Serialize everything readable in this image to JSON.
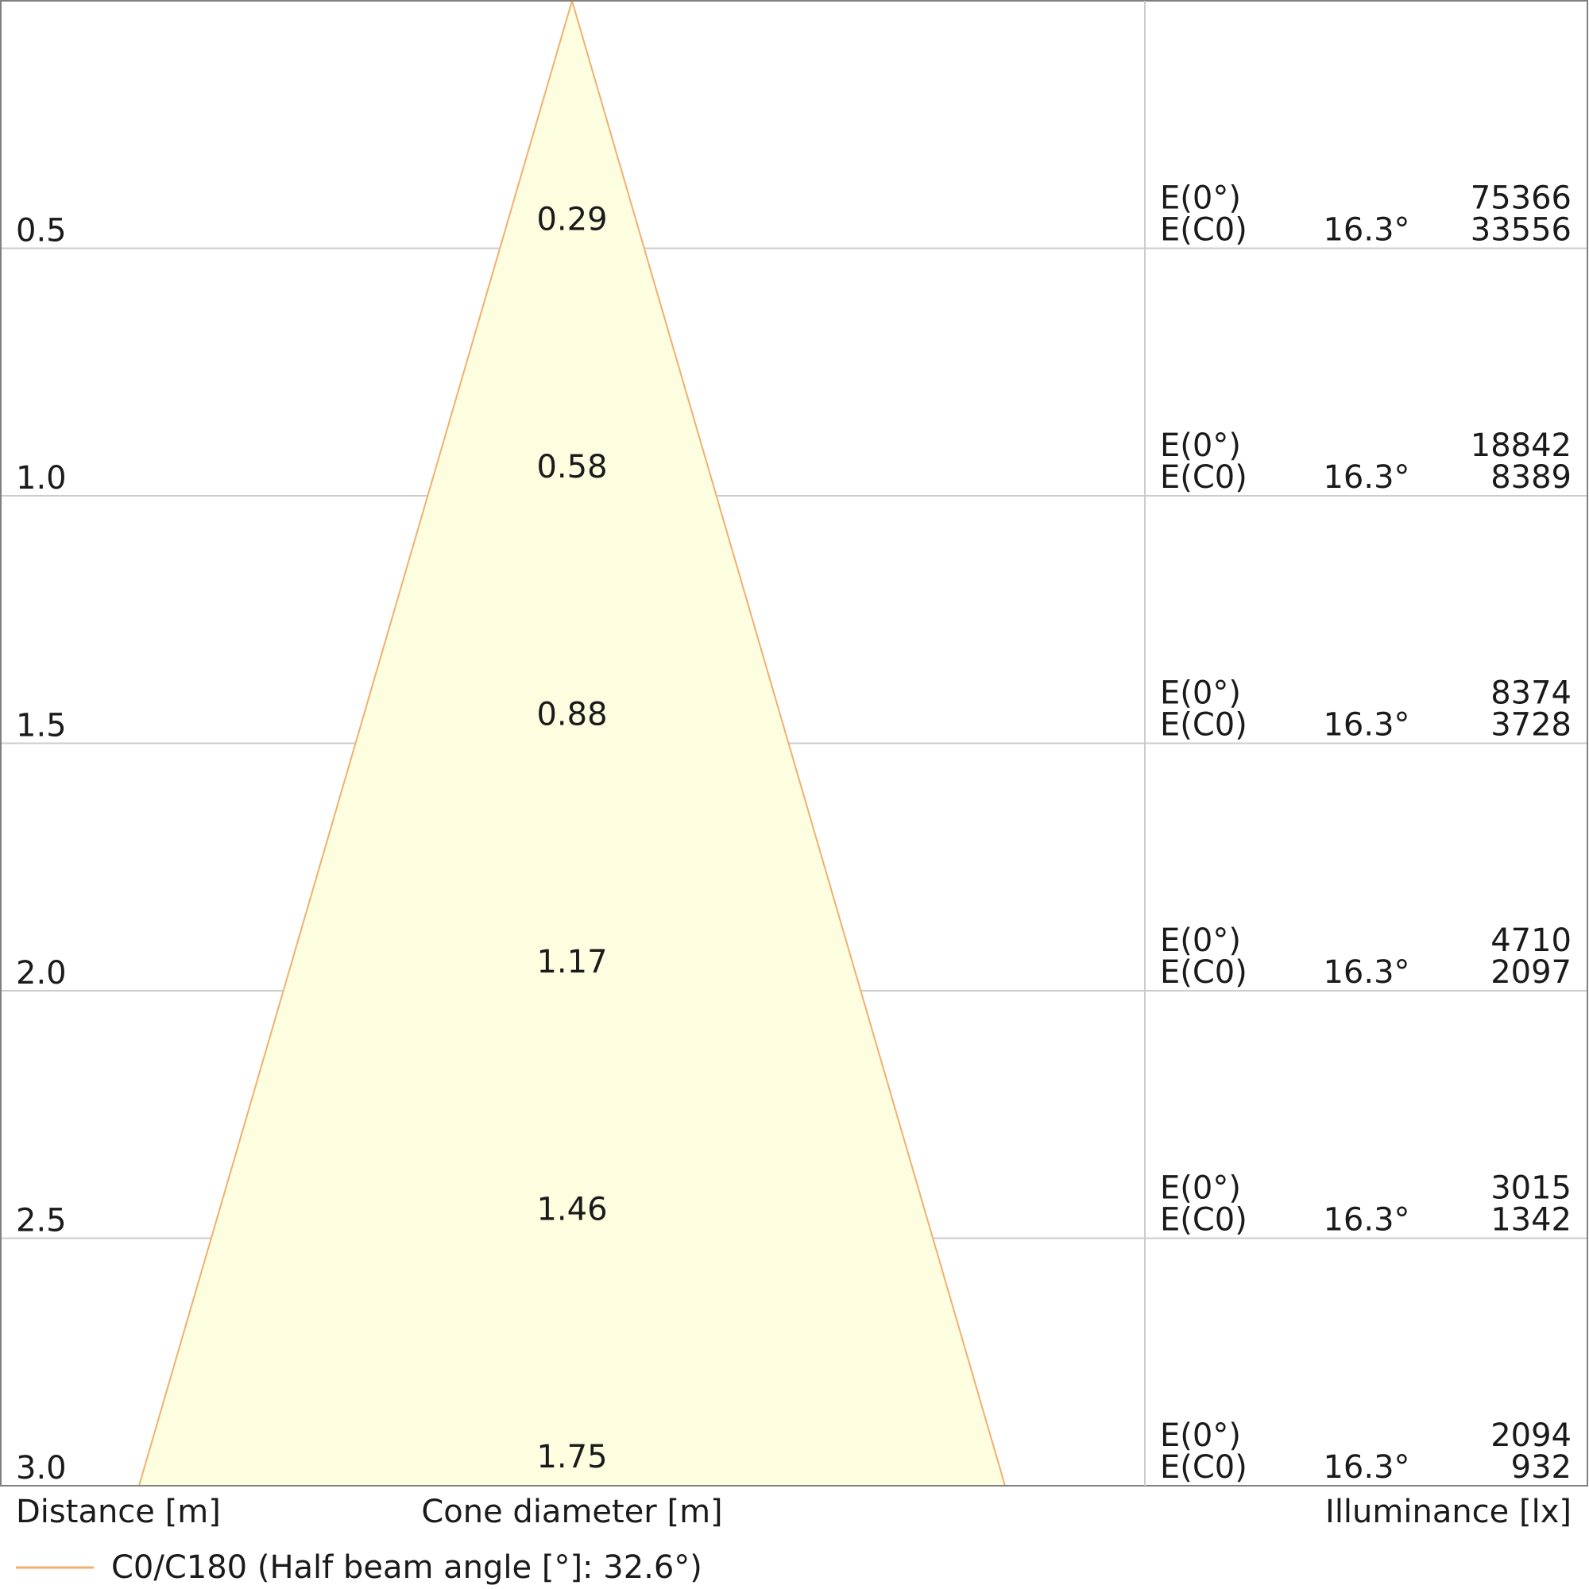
{
  "chart_data": {
    "type": "area",
    "xlabel": "Cone diameter [m]",
    "ylabel": "Distance [m]",
    "illuminance_label": "Illuminance [lx]",
    "ylim": [
      0,
      3.0
    ],
    "grid": true,
    "legend_position": "bottom-left",
    "series": [
      {
        "name": "C0/C180 (Half beam angle [°]: 32.6°)",
        "color": "#f0b070",
        "fill": "#fdfde0"
      }
    ],
    "rows": [
      {
        "distance": "0.5",
        "diameter": "0.29",
        "e0_label": "E(0°)",
        "e0_value": "75366",
        "ec0_label": "E(C0)",
        "angle": "16.3°",
        "ec0_value": "33556"
      },
      {
        "distance": "1.0",
        "diameter": "0.58",
        "e0_label": "E(0°)",
        "e0_value": "18842",
        "ec0_label": "E(C0)",
        "angle": "16.3°",
        "ec0_value": "8389"
      },
      {
        "distance": "1.5",
        "diameter": "0.88",
        "e0_label": "E(0°)",
        "e0_value": "8374",
        "ec0_label": "E(C0)",
        "angle": "16.3°",
        "ec0_value": "3728"
      },
      {
        "distance": "2.0",
        "diameter": "1.17",
        "e0_label": "E(0°)",
        "e0_value": "4710",
        "ec0_label": "E(C0)",
        "angle": "16.3°",
        "ec0_value": "2097"
      },
      {
        "distance": "2.5",
        "diameter": "1.46",
        "e0_label": "E(0°)",
        "e0_value": "3015",
        "ec0_label": "E(C0)",
        "angle": "16.3°",
        "ec0_value": "1342"
      },
      {
        "distance": "3.0",
        "diameter": "1.75",
        "e0_label": "E(0°)",
        "e0_value": "2094",
        "ec0_label": "E(C0)",
        "angle": "16.3°",
        "ec0_value": "932"
      }
    ]
  }
}
